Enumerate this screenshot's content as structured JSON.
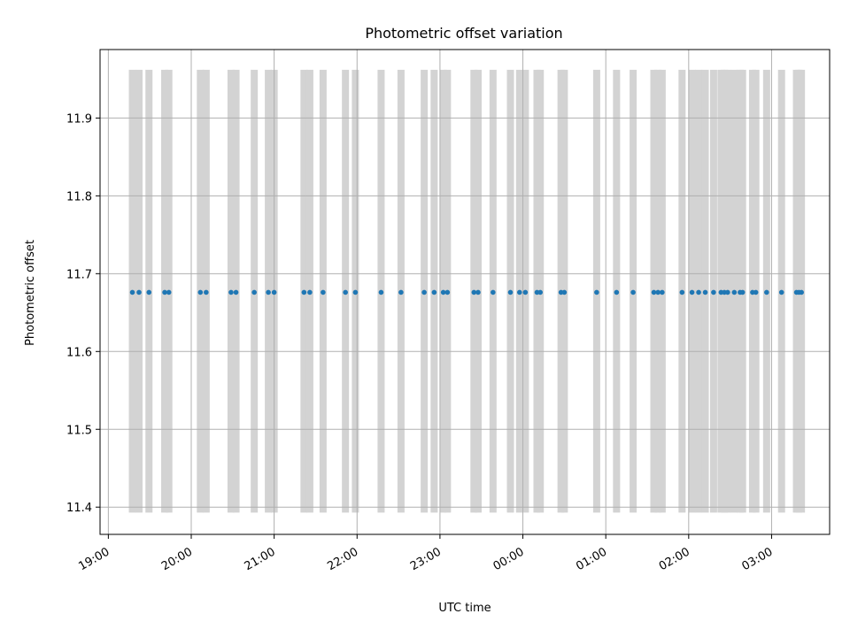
{
  "chart_data": {
    "type": "scatter",
    "title": "Photometric offset variation",
    "xlabel": "UTC time",
    "ylabel": "Photometric offset",
    "x_unit": "hours since 19:00 UTC",
    "xlim": [
      -0.1,
      8.7
    ],
    "ylim": [
      11.365,
      11.988
    ],
    "grid": true,
    "colors": {
      "points": "#1f77b4",
      "bands": "#d3d3d3",
      "grid": "#b0b0b0"
    },
    "x_ticks": [
      {
        "value": 0,
        "label": "19:00"
      },
      {
        "value": 1,
        "label": "20:00"
      },
      {
        "value": 2,
        "label": "21:00"
      },
      {
        "value": 3,
        "label": "22:00"
      },
      {
        "value": 4,
        "label": "23:00"
      },
      {
        "value": 5,
        "label": "00:00"
      },
      {
        "value": 6,
        "label": "01:00"
      },
      {
        "value": 7,
        "label": "02:00"
      },
      {
        "value": 8,
        "label": "03:00"
      }
    ],
    "y_ticks": [
      11.4,
      11.5,
      11.6,
      11.7,
      11.8,
      11.9
    ],
    "band_range": [
      11.393,
      11.962
    ],
    "series": [
      {
        "values_y": 11.676,
        "x": [
          0.29,
          0.37,
          0.49,
          0.68,
          0.73,
          1.11,
          1.18,
          1.48,
          1.54,
          1.76,
          1.93,
          2.0,
          2.36,
          2.43,
          2.59,
          2.86,
          2.98,
          3.29,
          3.53,
          3.81,
          3.93,
          4.04,
          4.09,
          4.41,
          4.46,
          4.64,
          4.85,
          4.96,
          5.03,
          5.17,
          5.21,
          5.46,
          5.5,
          5.89,
          6.13,
          6.33,
          6.58,
          6.63,
          6.68,
          6.92,
          7.04,
          7.12,
          7.2,
          7.3,
          7.39,
          7.43,
          7.47,
          7.55,
          7.62,
          7.65,
          7.77,
          7.81,
          7.94,
          8.12,
          8.3,
          8.33,
          8.36
        ]
      }
    ]
  }
}
